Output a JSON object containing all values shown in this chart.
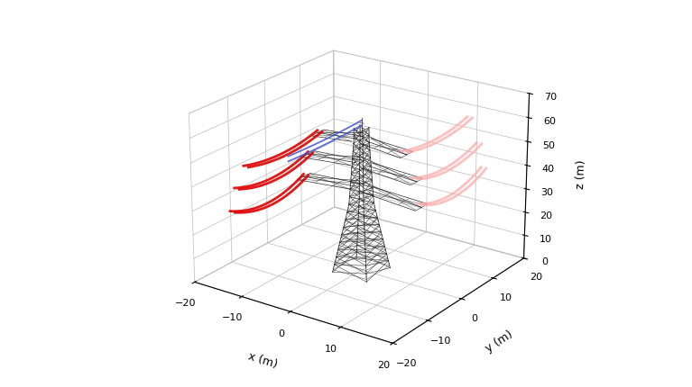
{
  "xlim": [
    -20,
    20
  ],
  "ylim": [
    -20,
    20
  ],
  "zlim": [
    0,
    70
  ],
  "xlabel": "x (m)",
  "ylabel": "y (m)",
  "zlabel": "z (m)",
  "x_ticks": [
    -20,
    -10,
    0,
    10,
    20
  ],
  "y_ticks": [
    -20,
    -10,
    0,
    10,
    20
  ],
  "z_ticks": [
    0,
    10,
    20,
    30,
    40,
    50,
    60,
    70
  ],
  "background_color": "#ffffff",
  "grid_color": "#bbbbbb",
  "tower_color": "#222222",
  "cable_red": "#dd0000",
  "cable_pink": "#ffaaaa",
  "cable_blue": "#4455cc",
  "view_elev": 22,
  "view_azim": -55,
  "figsize": [
    7.67,
    4.31
  ],
  "dpi": 100,
  "tower_lw": 0.6,
  "cable_lw": 2.0
}
